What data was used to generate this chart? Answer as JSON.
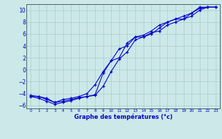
{
  "background_color": "#cce8e8",
  "grid_color": "#aacccc",
  "line_color": "#0000cc",
  "title": "Graphe des températures (°c)",
  "xlim": [
    -0.5,
    23.5
  ],
  "ylim": [
    -6.5,
    11.0
  ],
  "xticks": [
    0,
    1,
    2,
    3,
    4,
    5,
    6,
    7,
    8,
    9,
    10,
    11,
    12,
    13,
    14,
    15,
    16,
    17,
    18,
    19,
    20,
    21,
    22,
    23
  ],
  "yticks": [
    -6,
    -4,
    -2,
    0,
    2,
    4,
    6,
    8,
    10
  ],
  "line1_x": [
    0,
    1,
    2,
    3,
    4,
    5,
    6,
    7,
    8,
    9,
    10,
    11,
    12,
    13,
    14,
    15,
    16,
    17,
    18,
    19,
    20,
    21,
    22,
    23
  ],
  "line1_y": [
    -4.5,
    -4.5,
    -5.0,
    -5.5,
    -5.3,
    -5.0,
    -4.7,
    -4.5,
    -4.2,
    -0.6,
    1.5,
    2.0,
    4.5,
    5.5,
    5.5,
    6.0,
    7.0,
    8.0,
    8.5,
    8.5,
    9.5,
    10.5,
    10.5,
    10.5
  ],
  "line2_x": [
    0,
    1,
    2,
    3,
    4,
    5,
    6,
    7,
    8,
    9,
    10,
    11,
    12,
    13,
    14,
    15,
    16,
    17,
    18,
    19,
    20,
    21,
    22,
    23
  ],
  "line2_y": [
    -4.5,
    -4.8,
    -5.3,
    -5.8,
    -5.5,
    -5.2,
    -4.8,
    -4.5,
    -4.3,
    -2.8,
    -0.3,
    1.8,
    3.0,
    5.0,
    5.5,
    6.2,
    6.5,
    7.5,
    8.0,
    8.5,
    9.0,
    10.0,
    10.5,
    10.5
  ],
  "line3_x": [
    0,
    1,
    2,
    3,
    4,
    5,
    6,
    7,
    8,
    9,
    10,
    11,
    12,
    13,
    14,
    15,
    16,
    17,
    18,
    19,
    20,
    21,
    22,
    23
  ],
  "line3_y": [
    -4.3,
    -4.5,
    -4.8,
    -5.5,
    -5.0,
    -4.8,
    -4.5,
    -4.0,
    -2.5,
    -0.3,
    1.5,
    3.5,
    4.0,
    5.5,
    5.8,
    6.5,
    7.5,
    8.0,
    8.5,
    9.0,
    9.5,
    10.3,
    10.5,
    10.5
  ]
}
